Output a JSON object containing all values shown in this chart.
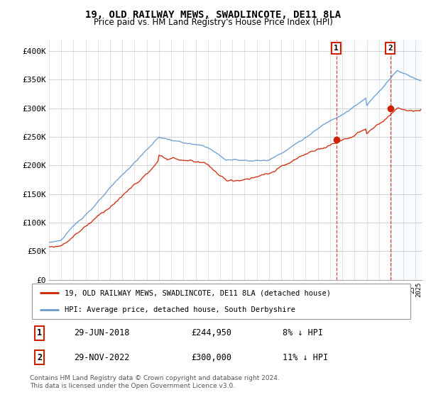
{
  "title": "19, OLD RAILWAY MEWS, SWADLINCOTE, DE11 8LA",
  "subtitle": "Price paid vs. HM Land Registry's House Price Index (HPI)",
  "hpi_color": "#6699cc",
  "price_color": "#cc2200",
  "marker1_year": 2018.5,
  "marker1_price": 244950,
  "marker2_year": 2022.92,
  "marker2_price": 300000,
  "legend_label_price": "19, OLD RAILWAY MEWS, SWADLINCOTE, DE11 8LA (detached house)",
  "legend_label_hpi": "HPI: Average price, detached house, South Derbyshire",
  "note1_date": "29-JUN-2018",
  "note1_price": "£244,950",
  "note1_hpi": "8% ↓ HPI",
  "note2_date": "29-NOV-2022",
  "note2_price": "£300,000",
  "note2_hpi": "11% ↓ HPI",
  "footer": "Contains HM Land Registry data © Crown copyright and database right 2024.\nThis data is licensed under the Open Government Licence v3.0.",
  "background_color": "#ffffff",
  "grid_color": "#cccccc",
  "shaded_color": "#ddeeff",
  "xlim_start": 1995,
  "xlim_end": 2025.5,
  "ylim": [
    0,
    420000
  ],
  "yticks": [
    0,
    50000,
    100000,
    150000,
    200000,
    250000,
    300000,
    350000,
    400000
  ],
  "ytick_labels": [
    "£0",
    "£50K",
    "£100K",
    "£150K",
    "£200K",
    "£250K",
    "£300K",
    "£350K",
    "£400K"
  ]
}
